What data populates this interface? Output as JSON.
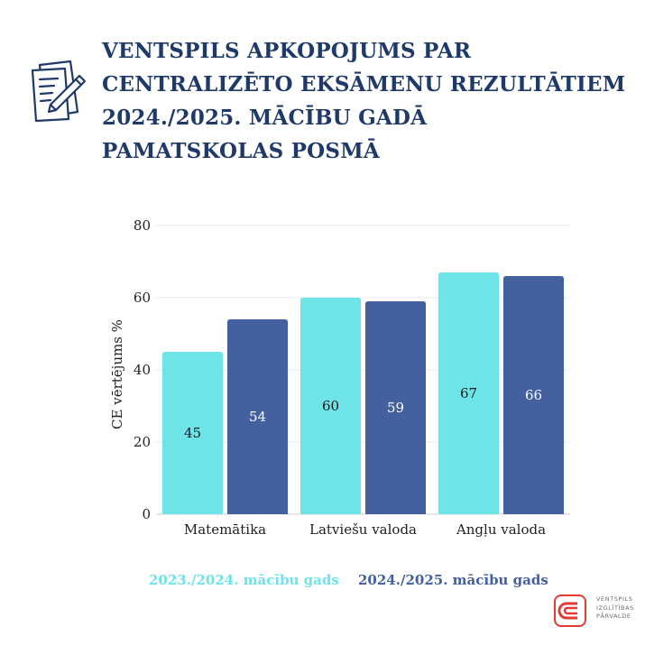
{
  "title_lines": [
    "VENTSPILS APKOPOJUMS PAR",
    "CENTRALIZĒTO EKSĀMENU REZULTĀTIEM",
    "2024./2025. MĀCĪBU GADĀ",
    "PAMATSKOLAS POSMĀ"
  ],
  "icon": "document-with-pen-icon",
  "colors": {
    "title": "#1f3a68",
    "series_a": "#6ee3e8",
    "series_b": "#44609f",
    "grid": "#e9e9e9",
    "axis_text": "#222222"
  },
  "chart_data": {
    "type": "bar",
    "categories": [
      "Matemātika",
      "Latviešu valoda",
      "Angļu valoda"
    ],
    "series": [
      {
        "name": "2023./2024. mācību gads",
        "values": [
          45,
          60,
          67
        ]
      },
      {
        "name": "2024./2025. mācību gads",
        "values": [
          54,
          59,
          66
        ]
      }
    ],
    "ylabel": "CE vērtējums %",
    "xlabel": "",
    "ylim": [
      0,
      80
    ],
    "yticks": [
      0,
      20,
      40,
      60,
      80
    ],
    "grid": true,
    "legend_position": "bottom"
  },
  "legend": {
    "items": [
      "2023./2024. mācību gads",
      "2024./2025. mācību gads"
    ]
  },
  "logo": {
    "lines": [
      "Ventspils",
      "izglītības",
      "pārvalde"
    ]
  }
}
